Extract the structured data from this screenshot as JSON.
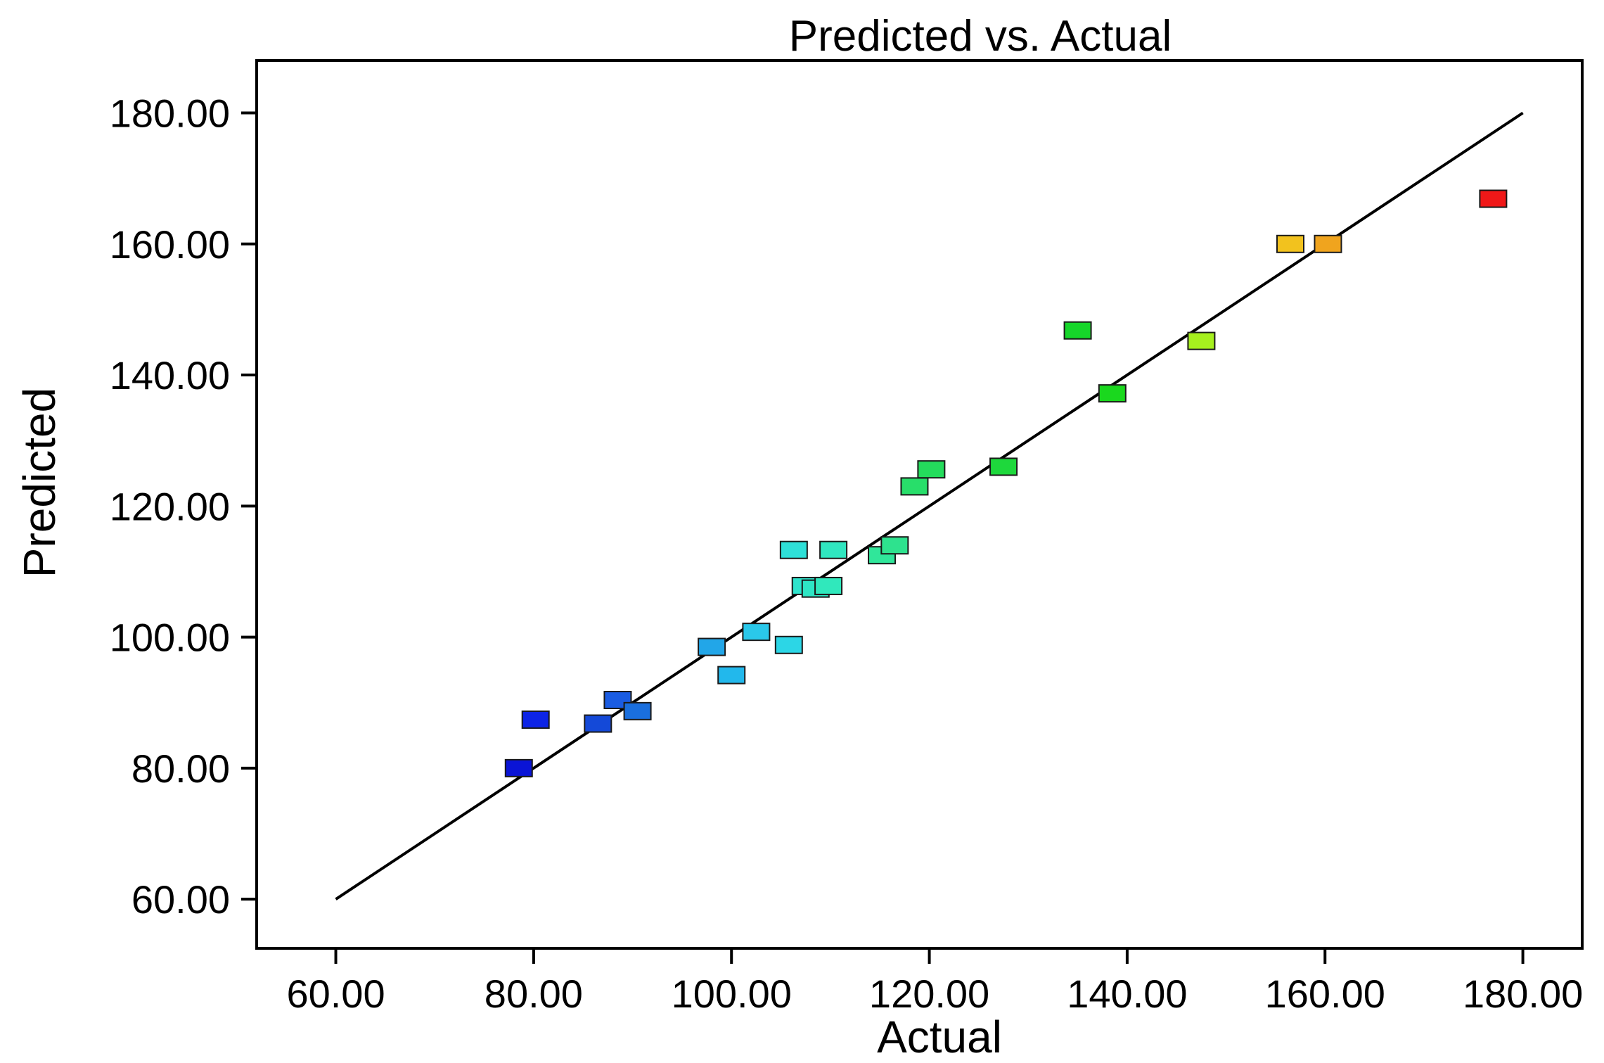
{
  "chart_data": {
    "type": "scatter",
    "title": "Predicted vs. Actual",
    "xlabel": "Actual",
    "ylabel": "Predicted",
    "xlim": [
      52,
      186
    ],
    "ylim": [
      52.5,
      188
    ],
    "x_ticks": [
      "60.00",
      "80.00",
      "100.00",
      "120.00",
      "140.00",
      "160.00",
      "180.00"
    ],
    "y_ticks": [
      "60.00",
      "80.00",
      "100.00",
      "120.00",
      "140.00",
      "160.00",
      "180.00"
    ],
    "reference_line": {
      "from": [
        60,
        60
      ],
      "to": [
        180,
        180
      ],
      "color": "#000000"
    },
    "grid": false,
    "legend": "none",
    "color_scale": "blue (low) to red (high) by actual value",
    "points": [
      {
        "x": 78.5,
        "y": 80.0,
        "color": "#0a14d6"
      },
      {
        "x": 80.2,
        "y": 87.4,
        "color": "#0d24e6"
      },
      {
        "x": 86.5,
        "y": 86.8,
        "color": "#1449d8"
      },
      {
        "x": 88.5,
        "y": 90.4,
        "color": "#1a5ce2"
      },
      {
        "x": 90.5,
        "y": 88.7,
        "color": "#1a6fde"
      },
      {
        "x": 98.0,
        "y": 98.5,
        "color": "#22a6e8"
      },
      {
        "x": 100.0,
        "y": 94.2,
        "color": "#22b8ec"
      },
      {
        "x": 102.5,
        "y": 100.8,
        "color": "#2ac8ea"
      },
      {
        "x": 105.8,
        "y": 98.8,
        "color": "#2cd6e6"
      },
      {
        "x": 106.3,
        "y": 113.3,
        "color": "#2ee0d8"
      },
      {
        "x": 107.5,
        "y": 107.8,
        "color": "#2ee4cc"
      },
      {
        "x": 108.5,
        "y": 107.4,
        "color": "#2ee6c4"
      },
      {
        "x": 109.8,
        "y": 107.8,
        "color": "#30e8bc"
      },
      {
        "x": 110.3,
        "y": 113.3,
        "color": "#30e6c0"
      },
      {
        "x": 115.2,
        "y": 112.5,
        "color": "#30e69a"
      },
      {
        "x": 116.5,
        "y": 114.0,
        "color": "#2ee28e"
      },
      {
        "x": 118.5,
        "y": 123.0,
        "color": "#28de6a"
      },
      {
        "x": 120.2,
        "y": 125.6,
        "color": "#24dc5c"
      },
      {
        "x": 127.5,
        "y": 126.0,
        "color": "#1ed83c"
      },
      {
        "x": 135.0,
        "y": 146.8,
        "color": "#16d62a"
      },
      {
        "x": 138.5,
        "y": 137.2,
        "color": "#1ad81e"
      },
      {
        "x": 147.5,
        "y": 145.2,
        "color": "#a6f01e"
      },
      {
        "x": 156.5,
        "y": 160.0,
        "color": "#f2c21e"
      },
      {
        "x": 160.3,
        "y": 160.0,
        "color": "#f0a41e"
      },
      {
        "x": 177.0,
        "y": 166.9,
        "color": "#f01818"
      }
    ]
  }
}
